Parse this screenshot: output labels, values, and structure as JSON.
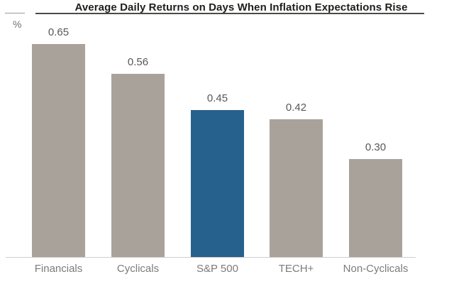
{
  "header": {
    "title": "Average Daily Returns on Days When Inflation Expectations Rise",
    "y_axis_unit": "%"
  },
  "chart_data": {
    "type": "bar",
    "title": "Average Daily Returns on Days When Inflation Expectations Rise",
    "xlabel": "",
    "ylabel": "%",
    "categories": [
      "Financials",
      "Cyclicals",
      "S&P 500",
      "TECH+",
      "Non-Cyclicals"
    ],
    "values": [
      0.65,
      0.56,
      0.45,
      0.42,
      0.3
    ],
    "value_labels": [
      "0.65",
      "0.56",
      "0.45",
      "0.42",
      "0.30"
    ],
    "ylim": [
      0,
      0.7
    ],
    "grid": false,
    "legend": false,
    "y_axis_ticks_visible": false,
    "bar_colors": [
      "#a9a29b",
      "#a9a29b",
      "#26618e",
      "#a9a29b",
      "#a9a29b"
    ],
    "colors": {
      "default_bar": "#a9a29b",
      "accent_bar": "#26618e",
      "title_text": "#1e1e1c",
      "title_rule": "#4a4a48",
      "left_rule": "#9a9a98",
      "value_label_text": "#575757",
      "category_label_text": "#7b7b7b",
      "baseline": "#d2cfcb",
      "background": "#ffffff"
    }
  }
}
